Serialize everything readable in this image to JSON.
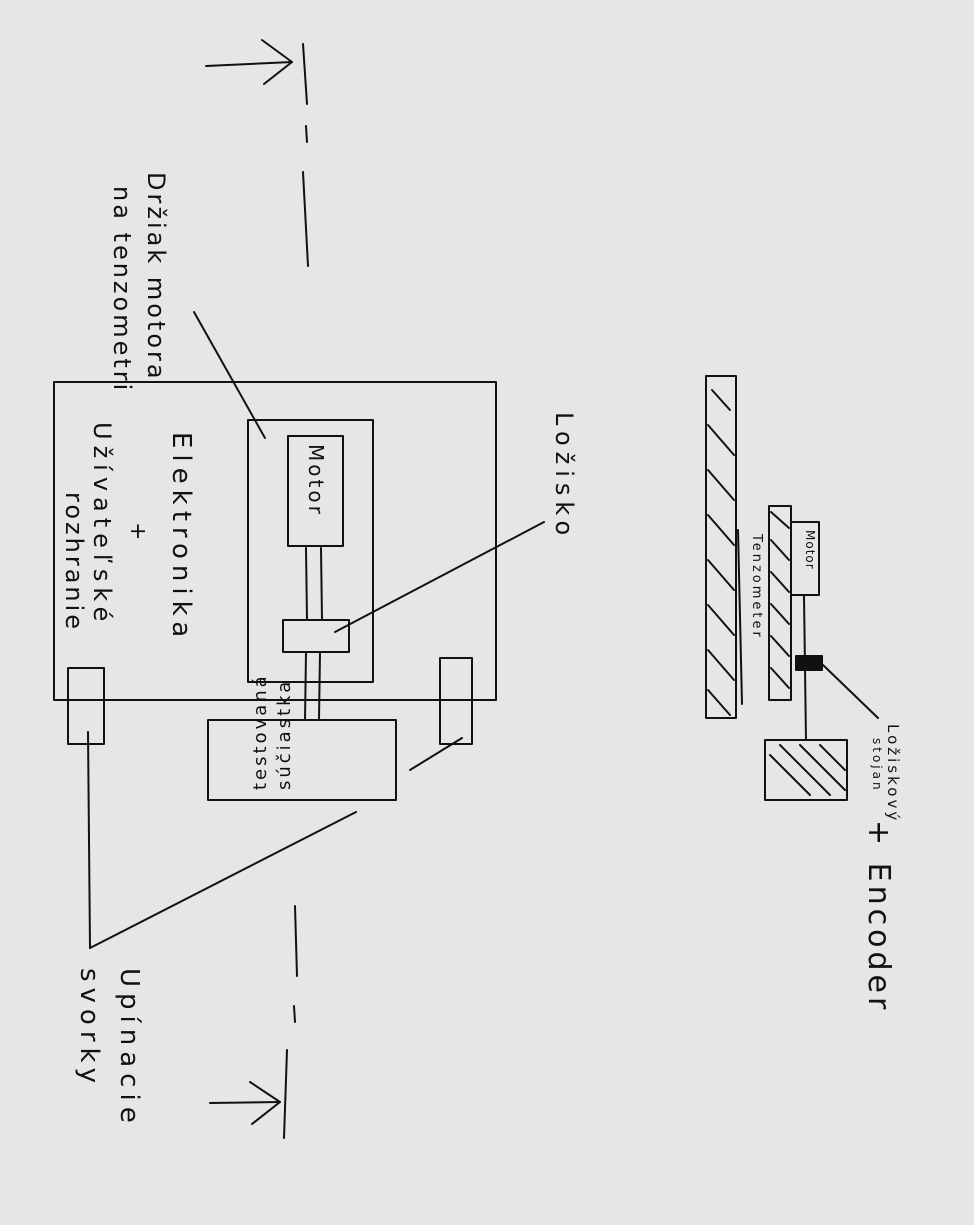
{
  "colors": {
    "background": "#e6e6e6",
    "ink": "#111111"
  },
  "left_view": {
    "motor_holder_label_line1": "Držiak motora",
    "motor_holder_label_line2": "na tenzometri",
    "electronics_label_line1": "Elektronika",
    "electronics_label_line2": "+",
    "electronics_label_line3": "Užívateľské",
    "electronics_label_line4": "rozhranie",
    "motor_label": "Motor",
    "bearing_label": "Ložisko",
    "test_part_label_line1": "testovaná",
    "test_part_label_line2": "súčiastka",
    "clamps_label_line1": "Upínacie",
    "clamps_label_line2": "svorky"
  },
  "side_view": {
    "motor_label": "Motor",
    "tenzometer_label": "Tenzometer",
    "bearing_stand_label_line1": "Ložiskový",
    "bearing_stand_label_line2": "stojan",
    "encoder_label": "+ Encoder"
  }
}
